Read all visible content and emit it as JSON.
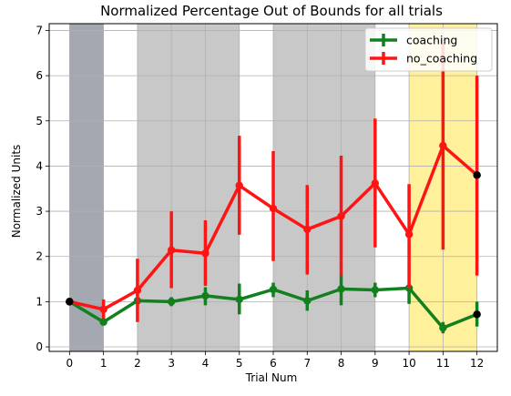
{
  "chart_data": {
    "type": "line",
    "title": "Normalized Percentage Out of Bounds for all trials",
    "xlabel": "Trial Num",
    "ylabel": "Normalized Units",
    "xlim": [
      -0.6,
      12.6
    ],
    "ylim": [
      -0.1,
      7.15
    ],
    "grid": true,
    "legend_position": "top-right",
    "x_ticks": [
      0,
      1,
      2,
      3,
      4,
      5,
      6,
      7,
      8,
      9,
      10,
      11,
      12
    ],
    "y_ticks": [
      0,
      1,
      2,
      3,
      4,
      5,
      6,
      7
    ],
    "shaded_regions": [
      {
        "x0": 0,
        "x1": 1,
        "color": "#a4a8b0"
      },
      {
        "x0": 2,
        "x1": 5,
        "color": "#c8c8c8"
      },
      {
        "x0": 6,
        "x1": 9,
        "color": "#c8c8c8"
      },
      {
        "x0": 10,
        "x1": 12,
        "color": "#fff09c"
      }
    ],
    "series": [
      {
        "name": "coaching",
        "color": "#12801e",
        "x": [
          0,
          1,
          2,
          3,
          4,
          5,
          6,
          7,
          8,
          9,
          10,
          11,
          12
        ],
        "values": [
          1.0,
          0.55,
          1.02,
          1.0,
          1.13,
          1.05,
          1.27,
          1.02,
          1.28,
          1.26,
          1.3,
          0.42,
          0.72
        ],
        "err_low": [
          1.0,
          0.5,
          1.0,
          0.9,
          0.92,
          0.72,
          1.1,
          0.8,
          0.92,
          1.1,
          0.95,
          0.3,
          0.45
        ],
        "err_high": [
          1.0,
          0.6,
          1.05,
          1.1,
          1.32,
          1.4,
          1.42,
          1.25,
          1.6,
          1.42,
          1.38,
          0.55,
          1.0
        ]
      },
      {
        "name": "no_coaching",
        "color": "#ff1414",
        "x": [
          0,
          1,
          2,
          3,
          4,
          5,
          6,
          7,
          8,
          9,
          10,
          11,
          12
        ],
        "values": [
          1.0,
          0.83,
          1.25,
          2.14,
          2.07,
          3.57,
          3.06,
          2.6,
          2.89,
          3.62,
          2.49,
          4.45,
          3.8
        ],
        "err_low": [
          1.0,
          0.62,
          0.55,
          1.3,
          1.35,
          2.48,
          1.9,
          1.6,
          1.58,
          2.2,
          1.3,
          2.15,
          1.58
        ],
        "err_high": [
          1.0,
          1.05,
          1.95,
          3.0,
          2.8,
          4.67,
          4.33,
          3.58,
          4.23,
          5.05,
          3.6,
          6.72,
          6.0
        ]
      }
    ],
    "endpoint_marker_color": "#000000"
  }
}
